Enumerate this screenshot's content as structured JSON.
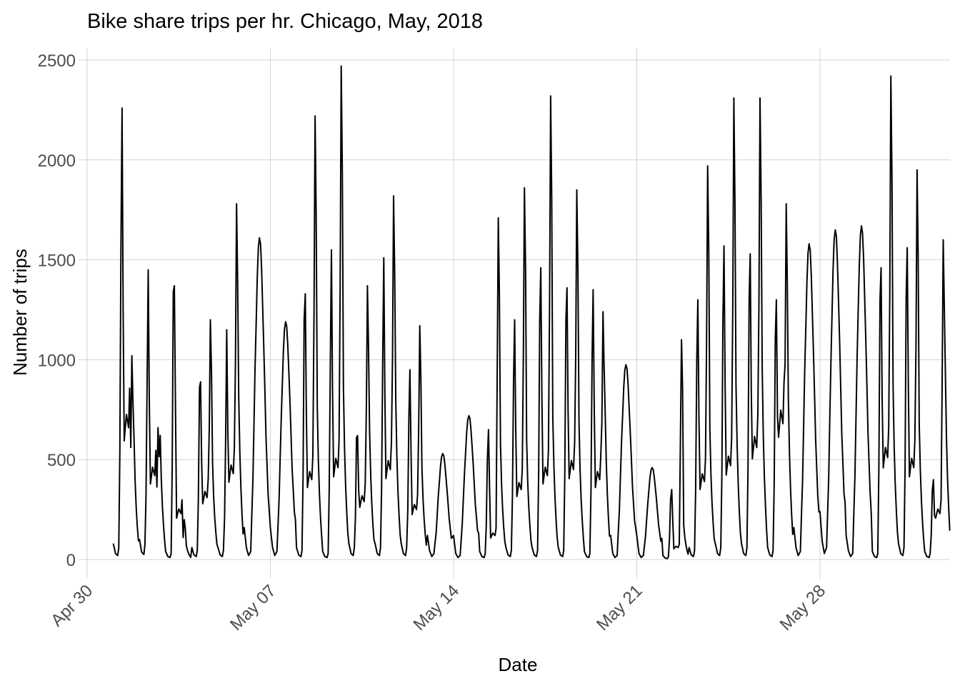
{
  "chart_data": {
    "type": "line",
    "title": "Bike share trips per hr. Chicago, May, 2018",
    "xlabel": "Date",
    "ylabel": "Number of trips",
    "x_ticks": [
      {
        "date": "2018-04-30",
        "label": "Apr 30"
      },
      {
        "date": "2018-05-07",
        "label": "May 07"
      },
      {
        "date": "2018-05-14",
        "label": "May 14"
      },
      {
        "date": "2018-05-21",
        "label": "May 21"
      },
      {
        "date": "2018-05-28",
        "label": "May 28"
      }
    ],
    "y_ticks": [
      0,
      500,
      1000,
      1500,
      2000,
      2500
    ],
    "xlim": [
      "2018-04-30",
      "2018-06-06"
    ],
    "ylim": [
      0,
      2500
    ],
    "grid": true,
    "legend": "none",
    "line_color": "#000000",
    "daily": [
      {
        "date": "2018-05-01",
        "weekend": false,
        "trough": 20,
        "morning": 1550,
        "am_peak": 2260,
        "midday": 660,
        "pm_peak": 1020,
        "evening": 520
      },
      {
        "date": "2018-05-02",
        "weekend": false,
        "trough": 25,
        "morning": 900,
        "am_peak": 1450,
        "midday": 420,
        "pm_peak": 660,
        "evening": 540
      },
      {
        "date": "2018-05-03",
        "weekend": false,
        "trough": 10,
        "morning": 1340,
        "am_peak": 1370,
        "midday": 230,
        "pm_peak": 200,
        "evening": 60
      },
      {
        "date": "2018-05-04",
        "weekend": false,
        "trough": 15,
        "morning": 860,
        "am_peak": 890,
        "midday": 310,
        "pm_peak": 1200,
        "evening": 420
      },
      {
        "date": "2018-05-05",
        "weekend": false,
        "trough": 15,
        "morning": 600,
        "am_peak": 1150,
        "midday": 430,
        "pm_peak": 1780,
        "evening": 710
      },
      {
        "date": "2018-05-06",
        "weekend": true,
        "trough": 20,
        "peak": 1610
      },
      {
        "date": "2018-05-07",
        "weekend": true,
        "trough": 20,
        "peak": 1190
      },
      {
        "date": "2018-05-08",
        "weekend": false,
        "trough": 15,
        "morning": 1200,
        "am_peak": 1330,
        "midday": 400,
        "pm_peak": 2220,
        "evening": 660
      },
      {
        "date": "2018-05-09",
        "weekend": false,
        "trough": 10,
        "morning": 1000,
        "am_peak": 1550,
        "midday": 460,
        "pm_peak": 2470,
        "evening": 750
      },
      {
        "date": "2018-05-10",
        "weekend": false,
        "trough": 20,
        "morning": 610,
        "am_peak": 620,
        "midday": 290,
        "pm_peak": 1370,
        "evening": 560
      },
      {
        "date": "2018-05-11",
        "weekend": false,
        "trough": 20,
        "morning": 1000,
        "am_peak": 1510,
        "midday": 450,
        "pm_peak": 1820,
        "evening": 690
      },
      {
        "date": "2018-05-12",
        "weekend": false,
        "trough": 20,
        "morning": 700,
        "am_peak": 950,
        "midday": 250,
        "pm_peak": 1170,
        "evening": 400
      },
      {
        "date": "2018-05-13",
        "weekend": true,
        "trough": 15,
        "peak": 530
      },
      {
        "date": "2018-05-14",
        "weekend": true,
        "trough": 10,
        "peak": 720
      },
      {
        "date": "2018-05-15",
        "weekend": false,
        "trough": 10,
        "morning": 500,
        "am_peak": 650,
        "midday": 120,
        "pm_peak": 1710,
        "evening": 500
      },
      {
        "date": "2018-05-16",
        "weekend": false,
        "trough": 15,
        "morning": 900,
        "am_peak": 1200,
        "midday": 350,
        "pm_peak": 1860,
        "evening": 520
      },
      {
        "date": "2018-05-17",
        "weekend": false,
        "trough": 15,
        "morning": 1200,
        "am_peak": 1460,
        "midday": 420,
        "pm_peak": 2320,
        "evening": 620
      },
      {
        "date": "2018-05-18",
        "weekend": false,
        "trough": 15,
        "morning": 1200,
        "am_peak": 1360,
        "midday": 450,
        "pm_peak": 1850,
        "evening": 600
      },
      {
        "date": "2018-05-19",
        "weekend": false,
        "trough": 10,
        "morning": 1000,
        "am_peak": 1350,
        "midday": 400,
        "pm_peak": 1240,
        "evening": 650
      },
      {
        "date": "2018-05-20",
        "weekend": true,
        "trough": 10,
        "peak": 975
      },
      {
        "date": "2018-05-21",
        "weekend": true,
        "trough": 10,
        "peak": 460
      },
      {
        "date": "2018-05-22",
        "weekend": false,
        "trough": 5,
        "morning": 300,
        "am_peak": 350,
        "midday": 60,
        "pm_peak": 1100,
        "evening": 150
      },
      {
        "date": "2018-05-23",
        "weekend": false,
        "trough": 15,
        "morning": 1000,
        "am_peak": 1300,
        "midday": 390,
        "pm_peak": 1970,
        "evening": 570
      },
      {
        "date": "2018-05-24",
        "weekend": false,
        "trough": 20,
        "morning": 1200,
        "am_peak": 1570,
        "midday": 470,
        "pm_peak": 2310,
        "evening": 760
      },
      {
        "date": "2018-05-25",
        "weekend": false,
        "trough": 20,
        "morning": 1300,
        "am_peak": 1530,
        "midday": 560,
        "pm_peak": 2310,
        "evening": 830
      },
      {
        "date": "2018-05-26",
        "weekend": false,
        "trough": 15,
        "morning": 1100,
        "am_peak": 1300,
        "midday": 680,
        "pm_peak": 1780,
        "evening": 700
      },
      {
        "date": "2018-05-27",
        "weekend": true,
        "trough": 20,
        "peak": 1580
      },
      {
        "date": "2018-05-28",
        "weekend": true,
        "trough": 30,
        "peak": 1650
      },
      {
        "date": "2018-05-29",
        "weekend": true,
        "trough": 15,
        "peak": 1670
      },
      {
        "date": "2018-05-30",
        "weekend": false,
        "trough": 10,
        "morning": 1300,
        "am_peak": 1460,
        "midday": 510,
        "pm_peak": 2420,
        "evening": 760
      },
      {
        "date": "2018-05-31",
        "weekend": false,
        "trough": 20,
        "morning": 1300,
        "am_peak": 1560,
        "midday": 460,
        "pm_peak": 1950,
        "evening": 590
      },
      {
        "date": "2018-06-01",
        "weekend": false,
        "trough": 10,
        "morning": 350,
        "am_peak": 400,
        "midday": 230,
        "pm_peak": 1600,
        "evening": 800
      }
    ]
  }
}
